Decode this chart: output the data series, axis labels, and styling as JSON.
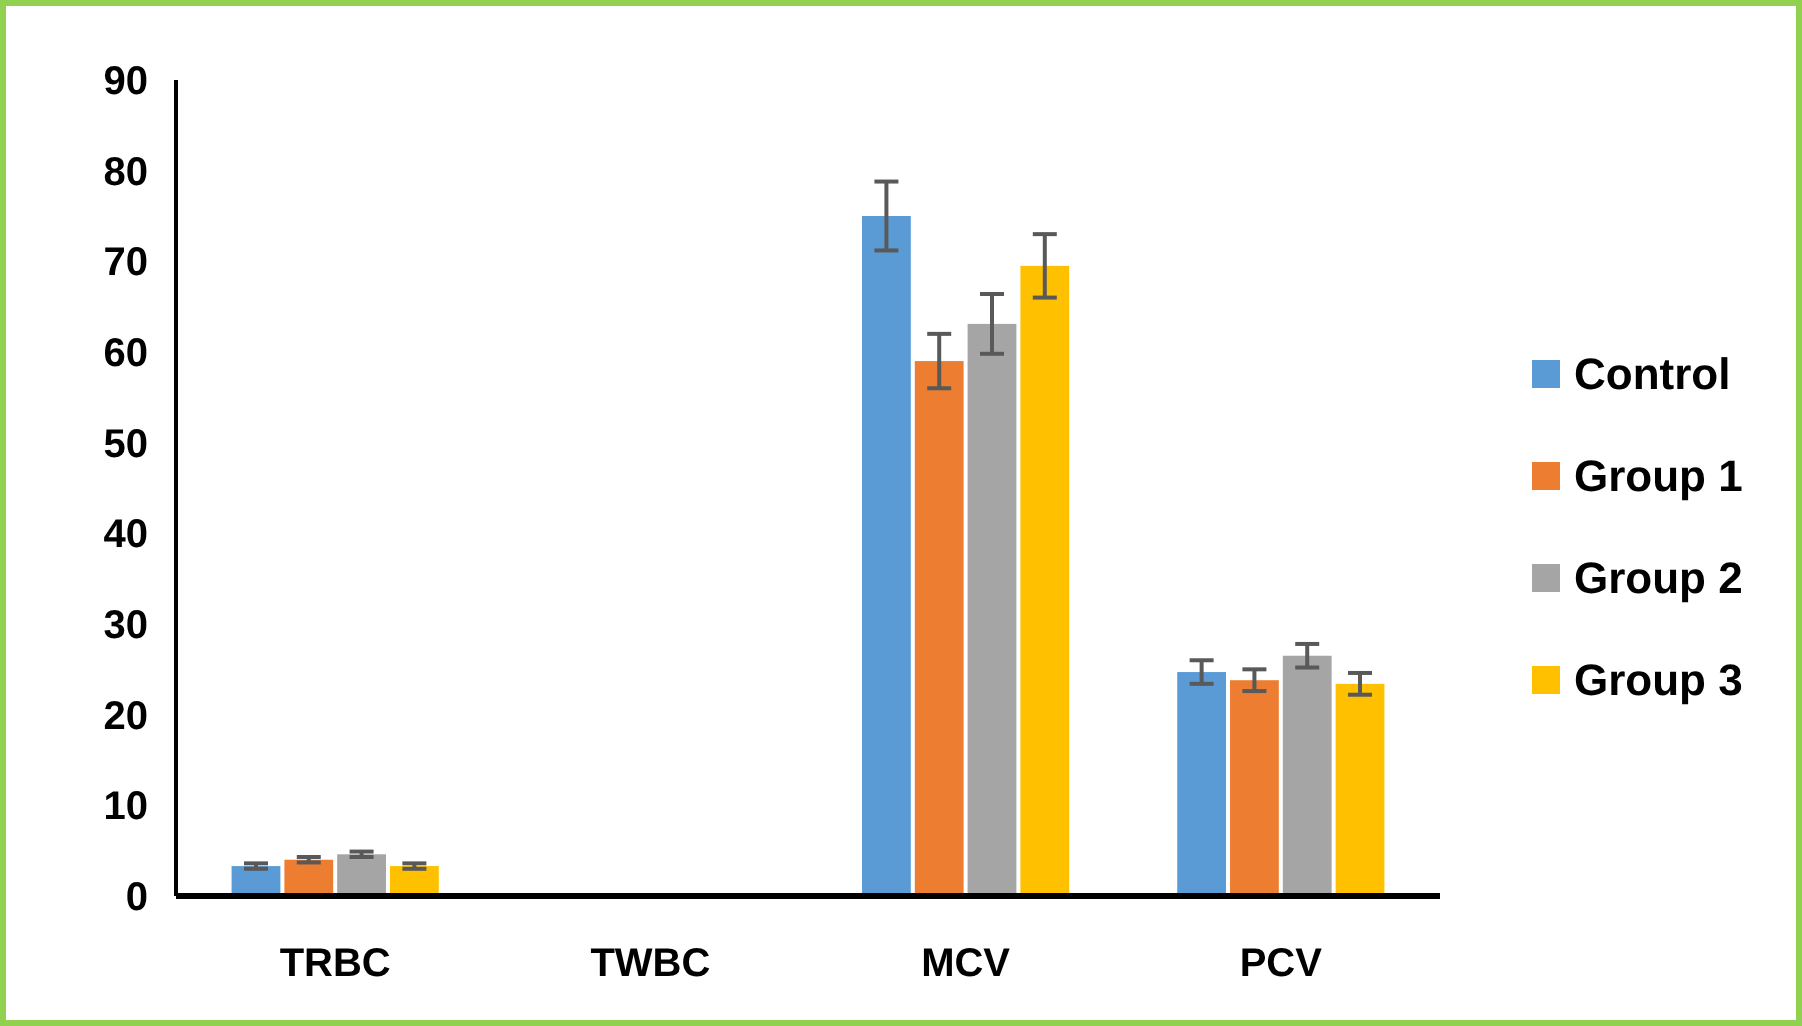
{
  "chart_data": {
    "type": "bar",
    "categories": [
      "TRBC",
      "TWBC",
      "MCV",
      "PCV"
    ],
    "series": [
      {
        "name": "Control",
        "color": "#5b9bd5",
        "values": [
          3.3,
          null,
          75,
          24.7
        ],
        "errors": [
          0.3,
          null,
          3.8,
          1.3
        ]
      },
      {
        "name": "Group 1",
        "color": "#ed7d31",
        "values": [
          4.0,
          null,
          59,
          23.8
        ],
        "errors": [
          0.3,
          null,
          3,
          1.2
        ]
      },
      {
        "name": "Group 2",
        "color": "#a5a5a5",
        "values": [
          4.6,
          null,
          63.1,
          26.5
        ],
        "errors": [
          0.3,
          null,
          3.3,
          1.3
        ]
      },
      {
        "name": "Group 3",
        "color": "#ffc000",
        "values": [
          3.3,
          null,
          69.5,
          23.4
        ],
        "errors": [
          0.3,
          null,
          3.5,
          1.2
        ]
      }
    ],
    "ylim": [
      0,
      90
    ],
    "yticks": [
      0,
      10,
      20,
      30,
      40,
      50,
      60,
      70,
      80,
      90
    ],
    "grid": false,
    "legend": "right"
  }
}
